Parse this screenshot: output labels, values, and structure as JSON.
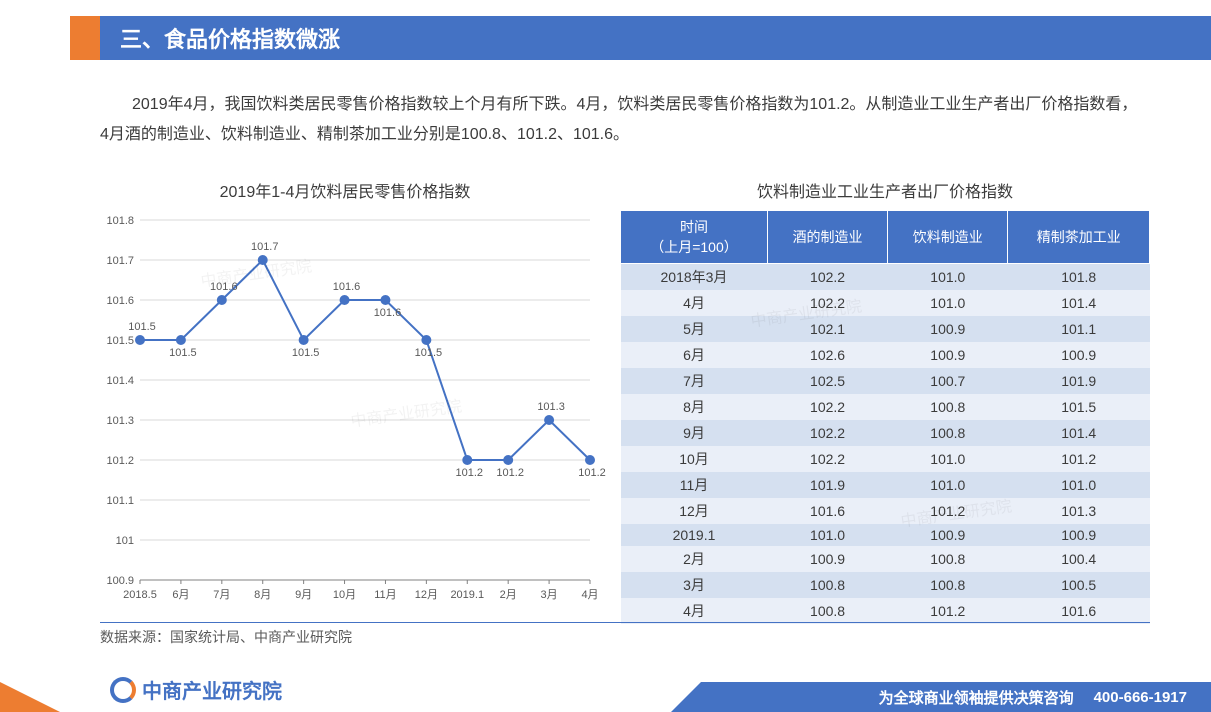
{
  "header": {
    "title": "三、食品价格指数微涨"
  },
  "body": {
    "paragraph": "2019年4月，我国饮料类居民零售价格指数较上个月有所下跌。4月，饮料类居民零售价格指数为101.2。从制造业工业生产者出厂价格指数看，4月酒的制造业、饮料制造业、精制茶加工业分别是100.8、101.2、101.6。"
  },
  "chart": {
    "title": "2019年1-4月饮料居民零售价格指数",
    "type": "line",
    "x_labels": [
      "2018.5",
      "6月",
      "7月",
      "8月",
      "9月",
      "10月",
      "11月",
      "12月",
      "2019.1",
      "2月",
      "3月",
      "4月"
    ],
    "values": [
      101.5,
      101.5,
      101.6,
      101.7,
      101.5,
      101.6,
      101.6,
      101.5,
      101.2,
      101.2,
      101.3,
      101.2
    ],
    "point_labels": [
      "101.5",
      "101.5",
      "101.6",
      "101.7",
      "101.5",
      "101.6",
      "101.6",
      "101.5",
      "101.2",
      "101.2",
      "101.3",
      "101.2"
    ],
    "ylim": [
      100.9,
      101.8
    ],
    "ytick_step": 0.1,
    "y_ticks": [
      "100.9",
      "101",
      "101.1",
      "101.2",
      "101.3",
      "101.4",
      "101.5",
      "101.6",
      "101.7",
      "101.8"
    ],
    "line_color": "#4472c4",
    "marker_color": "#4472c4",
    "marker_size": 5,
    "line_width": 2,
    "grid_color": "#d9d9d9",
    "background_color": "#ffffff",
    "axis_color": "#808080",
    "label_fontsize": 11,
    "tick_fontsize": 11
  },
  "table": {
    "title": "饮料制造业工业生产者出厂价格指数",
    "columns": [
      "时间\n（上月=100）",
      "酒的制造业",
      "饮料制造业",
      "精制茶加工业"
    ],
    "rows": [
      [
        "2018年3月",
        "102.2",
        "101.0",
        "101.8"
      ],
      [
        "4月",
        "102.2",
        "101.0",
        "101.4"
      ],
      [
        "5月",
        "102.1",
        "100.9",
        "101.1"
      ],
      [
        "6月",
        "102.6",
        "100.9",
        "100.9"
      ],
      [
        "7月",
        "102.5",
        "100.7",
        "101.9"
      ],
      [
        "8月",
        "102.2",
        "100.8",
        "101.5"
      ],
      [
        "9月",
        "102.2",
        "100.8",
        "101.4"
      ],
      [
        "10月",
        "102.2",
        "101.0",
        "101.2"
      ],
      [
        "11月",
        "101.9",
        "101.0",
        "101.0"
      ],
      [
        "12月",
        "101.6",
        "101.2",
        "101.3"
      ],
      [
        "2019.1",
        "101.0",
        "100.9",
        "100.9"
      ],
      [
        "2月",
        "100.9",
        "100.8",
        "100.4"
      ],
      [
        "3月",
        "100.8",
        "100.8",
        "100.5"
      ],
      [
        "4月",
        "100.8",
        "101.2",
        "101.6"
      ]
    ],
    "header_bg": "#4472c4",
    "header_color": "#ffffff",
    "row_odd_bg": "#d5e0f0",
    "row_even_bg": "#eaeff8"
  },
  "source": "数据来源：国家统计局、中商产业研究院",
  "footer": {
    "logo_text": "中商产业研究院",
    "slogan": "为全球商业领袖提供决策咨询",
    "phone": "400-666-1917"
  },
  "watermark_text": "中商产业研究院"
}
